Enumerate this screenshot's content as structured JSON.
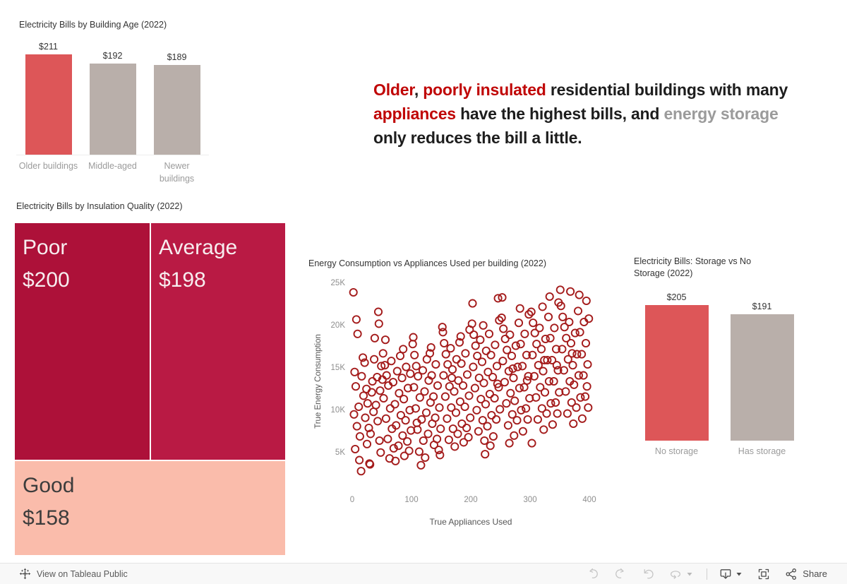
{
  "headline": {
    "segments": [
      {
        "text": "Older",
        "style": "red"
      },
      {
        "text": ", ",
        "style": "dark"
      },
      {
        "text": "poorly insulated",
        "style": "red"
      },
      {
        "text": " residential buildings with many ",
        "style": "dark"
      },
      {
        "text": "appliances",
        "style": "red"
      },
      {
        "text": " have the highest bills, and ",
        "style": "dark"
      },
      {
        "text": "energy storage",
        "style": "gray"
      },
      {
        "text": " only reduces the bill a little.",
        "style": "dark"
      }
    ]
  },
  "chart_data": [
    {
      "id": "building_age",
      "type": "bar",
      "title": "Electricity Bills by Building Age (2022)",
      "categories": [
        "Older buildings",
        "Middle-aged",
        "Newer buildings"
      ],
      "category_lines": [
        [
          "Older buildings"
        ],
        [
          "Middle-aged"
        ],
        [
          "Newer",
          "buildings"
        ]
      ],
      "values": [
        211,
        192,
        189
      ],
      "value_labels": [
        "$211",
        "$192",
        "$189"
      ],
      "bar_colors": [
        "#dd5658",
        "#b9afaa",
        "#b9afaa"
      ],
      "ylim": [
        0,
        211
      ],
      "ylabel": "",
      "xlabel": ""
    },
    {
      "id": "insulation",
      "type": "treemap",
      "title": "Electricity Bills by Insulation Quality (2022)",
      "cells": [
        {
          "name": "Poor",
          "value": 200,
          "value_label": "$200",
          "color": "#ad1139",
          "text_color": "#f7edef"
        },
        {
          "name": "Average",
          "value": 198,
          "value_label": "$198",
          "color": "#b91a44",
          "text_color": "#f7edef"
        },
        {
          "name": "Good",
          "value": 158,
          "value_label": "$158",
          "color": "#fabcab",
          "text_color": "#3c3c3c"
        }
      ]
    },
    {
      "id": "scatter",
      "type": "scatter",
      "title": "Energy Consumption vs Appliances Used per building (2022)",
      "xlabel": "True Appliances Used",
      "ylabel": "True Energy Consumption",
      "xlim": [
        0,
        400
      ],
      "ylim": [
        0,
        25000
      ],
      "x_ticks": [
        0,
        100,
        200,
        300,
        400
      ],
      "y_ticks": [
        {
          "v": 5000,
          "label": "5K"
        },
        {
          "v": 10000,
          "label": "10K"
        },
        {
          "v": 15000,
          "label": "15K"
        },
        {
          "v": 20000,
          "label": "20K"
        },
        {
          "v": 25000,
          "label": "25K"
        }
      ],
      "marker": {
        "shape": "open-circle",
        "color": "#a41b1b"
      },
      "points": [
        [
          2,
          24000
        ],
        [
          7,
          20800
        ],
        [
          9,
          19100
        ],
        [
          4,
          14600
        ],
        [
          12,
          4200
        ],
        [
          6,
          12900
        ],
        [
          15,
          2900
        ],
        [
          11,
          10500
        ],
        [
          3,
          9600
        ],
        [
          8,
          8200
        ],
        [
          13,
          7000
        ],
        [
          5,
          5500
        ],
        [
          18,
          16300
        ],
        [
          21,
          15700
        ],
        [
          16,
          14100
        ],
        [
          24,
          12600
        ],
        [
          19,
          11800
        ],
        [
          22,
          9200
        ],
        [
          26,
          10900
        ],
        [
          28,
          8000
        ],
        [
          31,
          7300
        ],
        [
          25,
          6100
        ],
        [
          29,
          3800
        ],
        [
          30,
          3700
        ],
        [
          34,
          13500
        ],
        [
          37,
          16100
        ],
        [
          33,
          12200
        ],
        [
          40,
          10700
        ],
        [
          43,
          8800
        ],
        [
          46,
          6500
        ],
        [
          48,
          5100
        ],
        [
          44,
          21700
        ],
        [
          45,
          20300
        ],
        [
          38,
          18600
        ],
        [
          49,
          15300
        ],
        [
          42,
          14000
        ],
        [
          36,
          9900
        ],
        [
          47,
          12400
        ],
        [
          52,
          16800
        ],
        [
          57,
          9100
        ],
        [
          55,
          15400
        ],
        [
          64,
          10300
        ],
        [
          58,
          14200
        ],
        [
          70,
          5600
        ],
        [
          61,
          13000
        ],
        [
          53,
          11500
        ],
        [
          67,
          7900
        ],
        [
          60,
          6700
        ],
        [
          63,
          4400
        ],
        [
          73,
          4100
        ],
        [
          66,
          15900
        ],
        [
          56,
          18400
        ],
        [
          69,
          13400
        ],
        [
          72,
          10800
        ],
        [
          74,
          8300
        ],
        [
          51,
          13700
        ],
        [
          76,
          14700
        ],
        [
          85,
          7100
        ],
        [
          79,
          12100
        ],
        [
          88,
          4700
        ],
        [
          82,
          9500
        ],
        [
          91,
          15200
        ],
        [
          78,
          5900
        ],
        [
          94,
          12700
        ],
        [
          81,
          16500
        ],
        [
          97,
          10100
        ],
        [
          84,
          13900
        ],
        [
          99,
          7700
        ],
        [
          87,
          11400
        ],
        [
          90,
          8900
        ],
        [
          93,
          6400
        ],
        [
          96,
          5300
        ],
        [
          86,
          17300
        ],
        [
          98,
          14400
        ],
        [
          102,
          17900
        ],
        [
          111,
          14100
        ],
        [
          105,
          16600
        ],
        [
          114,
          11600
        ],
        [
          108,
          15300
        ],
        [
          117,
          9000
        ],
        [
          104,
          12800
        ],
        [
          120,
          6500
        ],
        [
          107,
          10300
        ],
        [
          123,
          4500
        ],
        [
          110,
          7800
        ],
        [
          116,
          3600
        ],
        [
          113,
          5200
        ],
        [
          103,
          18700
        ],
        [
          119,
          14800
        ],
        [
          122,
          12300
        ],
        [
          125,
          9800
        ],
        [
          109,
          8600
        ],
        [
          126,
          16100
        ],
        [
          135,
          8500
        ],
        [
          129,
          13600
        ],
        [
          138,
          6000
        ],
        [
          132,
          11000
        ],
        [
          141,
          15500
        ],
        [
          128,
          7300
        ],
        [
          144,
          13000
        ],
        [
          131,
          16800
        ],
        [
          147,
          10400
        ],
        [
          134,
          14200
        ],
        [
          149,
          7900
        ],
        [
          137,
          11700
        ],
        [
          140,
          9200
        ],
        [
          143,
          6700
        ],
        [
          146,
          5400
        ],
        [
          133,
          17500
        ],
        [
          148,
          4800
        ],
        [
          152,
          19900
        ],
        [
          161,
          15500
        ],
        [
          155,
          18000
        ],
        [
          164,
          12900
        ],
        [
          158,
          16700
        ],
        [
          167,
          10400
        ],
        [
          154,
          14200
        ],
        [
          170,
          7900
        ],
        [
          157,
          11700
        ],
        [
          173,
          5800
        ],
        [
          160,
          9100
        ],
        [
          163,
          6600
        ],
        [
          166,
          17400
        ],
        [
          153,
          19300
        ],
        [
          169,
          14900
        ],
        [
          172,
          12300
        ],
        [
          168,
          13900
        ],
        [
          175,
          9800
        ],
        [
          176,
          16100
        ],
        [
          185,
          8500
        ],
        [
          179,
          13600
        ],
        [
          188,
          6300
        ],
        [
          182,
          11100
        ],
        [
          191,
          16800
        ],
        [
          178,
          7300
        ],
        [
          194,
          14300
        ],
        [
          181,
          18100
        ],
        [
          197,
          11800
        ],
        [
          184,
          15600
        ],
        [
          199,
          9200
        ],
        [
          187,
          13000
        ],
        [
          190,
          10500
        ],
        [
          193,
          8000
        ],
        [
          196,
          6900
        ],
        [
          183,
          18800
        ],
        [
          198,
          19600
        ],
        [
          202,
          20300
        ],
        [
          211,
          16500
        ],
        [
          205,
          19000
        ],
        [
          214,
          13900
        ],
        [
          208,
          17700
        ],
        [
          217,
          11400
        ],
        [
          204,
          15200
        ],
        [
          220,
          8900
        ],
        [
          207,
          12700
        ],
        [
          223,
          6500
        ],
        [
          210,
          10100
        ],
        [
          213,
          7600
        ],
        [
          216,
          18400
        ],
        [
          203,
          22700
        ],
        [
          219,
          15800
        ],
        [
          222,
          13300
        ],
        [
          221,
          20100
        ],
        [
          225,
          10800
        ],
        [
          224,
          4900
        ],
        [
          226,
          17100
        ],
        [
          235,
          9500
        ],
        [
          229,
          14600
        ],
        [
          238,
          7000
        ],
        [
          232,
          12000
        ],
        [
          241,
          17800
        ],
        [
          228,
          8200
        ],
        [
          244,
          15300
        ],
        [
          231,
          19100
        ],
        [
          247,
          12800
        ],
        [
          234,
          16600
        ],
        [
          249,
          10200
        ],
        [
          237,
          14000
        ],
        [
          240,
          11500
        ],
        [
          243,
          9000
        ],
        [
          246,
          23300
        ],
        [
          233,
          5900
        ],
        [
          248,
          20700
        ],
        [
          245,
          13200
        ],
        [
          252,
          21000
        ],
        [
          261,
          17200
        ],
        [
          255,
          19700
        ],
        [
          264,
          14700
        ],
        [
          258,
          18500
        ],
        [
          267,
          12100
        ],
        [
          254,
          15900
        ],
        [
          270,
          9600
        ],
        [
          257,
          13400
        ],
        [
          273,
          7100
        ],
        [
          260,
          10900
        ],
        [
          263,
          8300
        ],
        [
          266,
          19000
        ],
        [
          253,
          23400
        ],
        [
          269,
          16500
        ],
        [
          272,
          13900
        ],
        [
          265,
          6200
        ],
        [
          274,
          11200
        ],
        [
          271,
          15000
        ],
        [
          276,
          17700
        ],
        [
          285,
          10100
        ],
        [
          279,
          15200
        ],
        [
          288,
          7600
        ],
        [
          282,
          12700
        ],
        [
          291,
          19100
        ],
        [
          278,
          8900
        ],
        [
          294,
          16600
        ],
        [
          281,
          20400
        ],
        [
          297,
          14100
        ],
        [
          284,
          17900
        ],
        [
          299,
          11500
        ],
        [
          287,
          15300
        ],
        [
          290,
          12800
        ],
        [
          293,
          10300
        ],
        [
          296,
          9000
        ],
        [
          283,
          22100
        ],
        [
          298,
          21400
        ],
        [
          295,
          13600
        ],
        [
          302,
          21700
        ],
        [
          311,
          17900
        ],
        [
          305,
          20400
        ],
        [
          314,
          15400
        ],
        [
          308,
          19200
        ],
        [
          317,
          12800
        ],
        [
          304,
          16600
        ],
        [
          320,
          10300
        ],
        [
          307,
          14100
        ],
        [
          323,
          7800
        ],
        [
          310,
          11600
        ],
        [
          313,
          9000
        ],
        [
          316,
          19800
        ],
        [
          303,
          6200
        ],
        [
          319,
          17300
        ],
        [
          322,
          14700
        ],
        [
          321,
          22300
        ],
        [
          325,
          12200
        ],
        [
          324,
          16000
        ],
        [
          326,
          18500
        ],
        [
          335,
          10900
        ],
        [
          329,
          16000
        ],
        [
          338,
          8400
        ],
        [
          332,
          13500
        ],
        [
          341,
          19800
        ],
        [
          328,
          9700
        ],
        [
          344,
          17300
        ],
        [
          331,
          21100
        ],
        [
          347,
          14800
        ],
        [
          334,
          18600
        ],
        [
          349,
          12200
        ],
        [
          337,
          16000
        ],
        [
          340,
          13500
        ],
        [
          343,
          11000
        ],
        [
          346,
          9700
        ],
        [
          333,
          23500
        ],
        [
          348,
          22800
        ],
        [
          345,
          15400
        ],
        [
          352,
          22400
        ],
        [
          361,
          18600
        ],
        [
          355,
          21100
        ],
        [
          364,
          16100
        ],
        [
          358,
          19900
        ],
        [
          367,
          13500
        ],
        [
          354,
          17300
        ],
        [
          370,
          11000
        ],
        [
          357,
          14800
        ],
        [
          373,
          8500
        ],
        [
          360,
          12300
        ],
        [
          363,
          9700
        ],
        [
          366,
          20500
        ],
        [
          351,
          24300
        ],
        [
          369,
          18000
        ],
        [
          372,
          15400
        ],
        [
          368,
          24100
        ],
        [
          374,
          13100
        ],
        [
          371,
          16800
        ],
        [
          376,
          19200
        ],
        [
          385,
          11600
        ],
        [
          379,
          16700
        ],
        [
          388,
          9100
        ],
        [
          382,
          14200
        ],
        [
          391,
          20500
        ],
        [
          378,
          10400
        ],
        [
          394,
          18000
        ],
        [
          381,
          21800
        ],
        [
          397,
          15500
        ],
        [
          384,
          19300
        ],
        [
          396,
          12900
        ],
        [
          387,
          16700
        ],
        [
          390,
          14200
        ],
        [
          393,
          11700
        ],
        [
          398,
          10400
        ],
        [
          383,
          23700
        ],
        [
          395,
          23000
        ],
        [
          399,
          20900
        ]
      ]
    },
    {
      "id": "storage",
      "type": "bar",
      "title": "Electricity Bills: Storage vs No Storage (2022)",
      "title_lines": [
        "Electricity Bills: Storage vs No",
        "Storage (2022)"
      ],
      "categories": [
        "No storage",
        "Has storage"
      ],
      "category_lines": [
        [
          "No storage"
        ],
        [
          "Has storage"
        ]
      ],
      "values": [
        205,
        191
      ],
      "value_labels": [
        "$205",
        "$191"
      ],
      "bar_colors": [
        "#dd5658",
        "#b9afaa"
      ],
      "ylim": [
        0,
        205
      ],
      "ylabel": "",
      "xlabel": ""
    }
  ],
  "toolbar": {
    "view_label": "View on Tableau Public",
    "share_label": "Share"
  },
  "colors": {
    "accent_red": "#dd5658",
    "taupe": "#b9afaa",
    "crimson_dark": "#ad1139",
    "crimson": "#b91a44",
    "salmon": "#fabcab",
    "scatter_stroke": "#a41b1b",
    "headline_red": "#c00606",
    "headline_gray": "#9b9b9b"
  }
}
